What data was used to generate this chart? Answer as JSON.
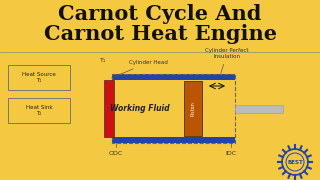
{
  "bg_color": "#F5C842",
  "title_line1": "Carnot Cycle And",
  "title_line2": "Carnot Heat Engine",
  "title_color": "#111111",
  "title_fontsize": 15,
  "box1_label": "Heat Source\nT₁",
  "box2_label": "Heat Sink\nT₂",
  "box_edge_color": "#777777",
  "cylinder_head_label": "Cylinder Head",
  "insulation_label": "Cylinder Perfect\nInsulation",
  "working_fluid_label": "Working Fluid",
  "piston_label": "Piston",
  "odc_label": "ODC",
  "idc_label": "IDC",
  "blue_bar_color": "#2244aa",
  "cyl_head_color": "#cc1111",
  "piston_color": "#bb5500",
  "rod_color": "#bbbbbb",
  "dashed_border": "#666666",
  "best_color": "#2244aa",
  "best_text": "BEST",
  "separator_color": "#888888",
  "annotation_color": "#333333",
  "arrow_color": "#111111"
}
